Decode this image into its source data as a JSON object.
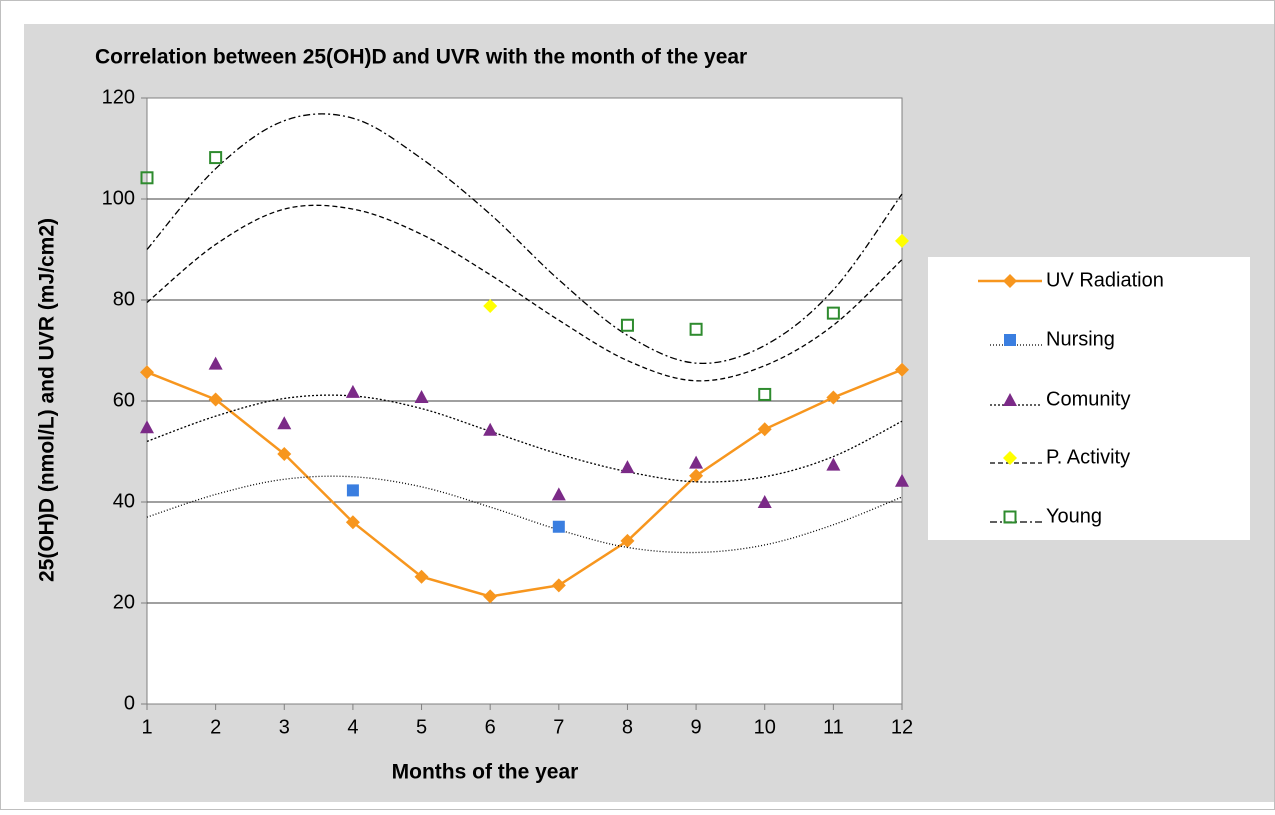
{
  "chart_data": {
    "type": "line",
    "title": "Correlation between 25(OH)D and UVR with the month of the year",
    "x_label": "Months of the year",
    "y_label": "25(OH)D (nmol/L) and UVR (mJ/cm2)",
    "x": [
      1,
      2,
      3,
      4,
      5,
      6,
      7,
      8,
      9,
      10,
      11,
      12
    ],
    "xlim": [
      1,
      12
    ],
    "xticks": [
      1,
      2,
      3,
      4,
      5,
      6,
      7,
      8,
      9,
      10,
      11,
      12
    ],
    "ylim": [
      0,
      120
    ],
    "yticks": [
      0,
      20,
      40,
      60,
      80,
      100,
      120
    ],
    "grid": true,
    "legend": "right",
    "series": [
      {
        "name": "UV Radiation",
        "color": "#f7961e",
        "marker": "diamond",
        "line": true,
        "values": [
          65.7,
          60.3,
          49.5,
          36.0,
          25.2,
          21.3,
          23.5,
          32.3,
          45.2,
          54.4,
          60.7,
          66.2
        ]
      },
      {
        "name": "Nursing",
        "color": "#3a7ee0",
        "marker": "square",
        "line": false,
        "trend_dash": "1,2",
        "values": [
          null,
          null,
          null,
          42.3,
          null,
          null,
          35.1,
          null,
          null,
          null,
          null,
          null
        ],
        "trend": [
          37,
          41.5,
          44.5,
          45,
          43,
          39,
          34.5,
          31,
          30,
          31.5,
          35.5,
          41
        ]
      },
      {
        "name": "Comunity",
        "color": "#7b2a87",
        "marker": "triangle",
        "line": false,
        "trend_dash": "2,2",
        "values": [
          54.8,
          67.4,
          55.6,
          61.8,
          60.8,
          54.3,
          41.5,
          46.9,
          47.8,
          40.0,
          47.4,
          44.2
        ],
        "trend": [
          52,
          57,
          60.5,
          61,
          58.5,
          54,
          49.5,
          46,
          44,
          45,
          49,
          56
        ]
      },
      {
        "name": "P. Activity",
        "color": "#ffff00",
        "marker": "diamond",
        "line": false,
        "trend_dash": "5,3",
        "values": [
          null,
          null,
          null,
          null,
          null,
          78.8,
          null,
          null,
          null,
          null,
          null,
          91.7
        ],
        "trend": [
          79.5,
          91,
          98,
          98,
          93,
          85,
          76,
          68,
          64,
          67,
          75,
          88
        ]
      },
      {
        "name": "Young",
        "color": "#2e8b2e",
        "marker": "open-square",
        "line": false,
        "trend_dash": "7,3,2,3",
        "values": [
          104.2,
          108.2,
          null,
          null,
          null,
          null,
          null,
          75.0,
          74.2,
          61.3,
          77.4,
          null
        ],
        "trend": [
          90,
          106,
          115.5,
          116,
          108,
          97,
          84,
          73,
          67.5,
          71,
          82,
          101
        ]
      }
    ]
  }
}
